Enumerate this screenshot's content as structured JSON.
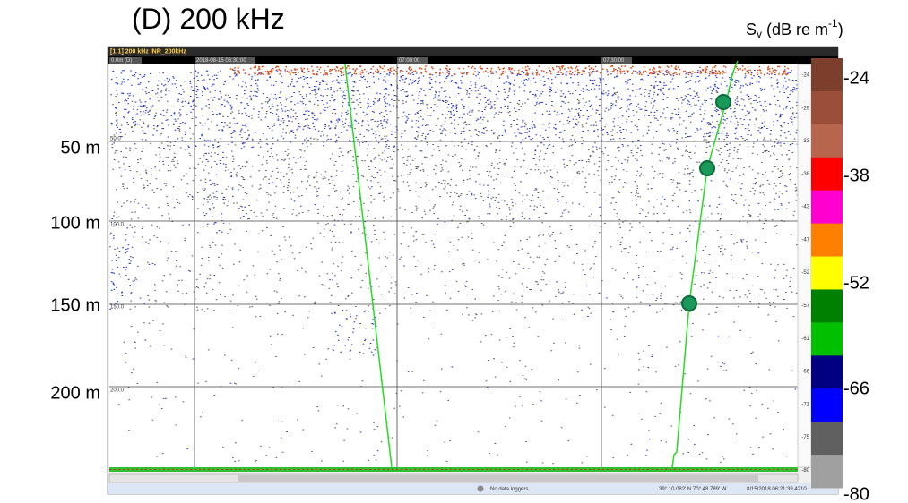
{
  "figure": {
    "panel_title": "(D) 200 kHz",
    "scale_title": {
      "symbol": "S",
      "subscript": "v",
      "unit": " (dB re m",
      "superscript": "-1",
      "close": ")"
    },
    "depth_labels": [
      "50 m",
      "100 m",
      "150 m",
      "200 m"
    ],
    "scale_labels": [
      "-24",
      "-38",
      "-52",
      "-66",
      "-80"
    ]
  },
  "window": {
    "title": "[1:1] 200 kHz INR_200kHz",
    "range_label": "0.0m (D)",
    "time_labels": [
      "2018-08-15 06:30:00",
      "07:00:00",
      "07:30:00"
    ],
    "grid_labels": [
      "50.0",
      "100.0",
      "150.0",
      "200.0"
    ],
    "mini_scale_labels": [
      "-24",
      "-29",
      "-33",
      "-38",
      "-43",
      "-47",
      "-52",
      "-57",
      "-61",
      "-66",
      "-71",
      "-75",
      "-80"
    ]
  },
  "status": {
    "loggers": "No data loggers",
    "position": "39° 10.082' N 70° 48.789' W",
    "timestamp": "8/15/2018 06:21:39.4210"
  }
}
